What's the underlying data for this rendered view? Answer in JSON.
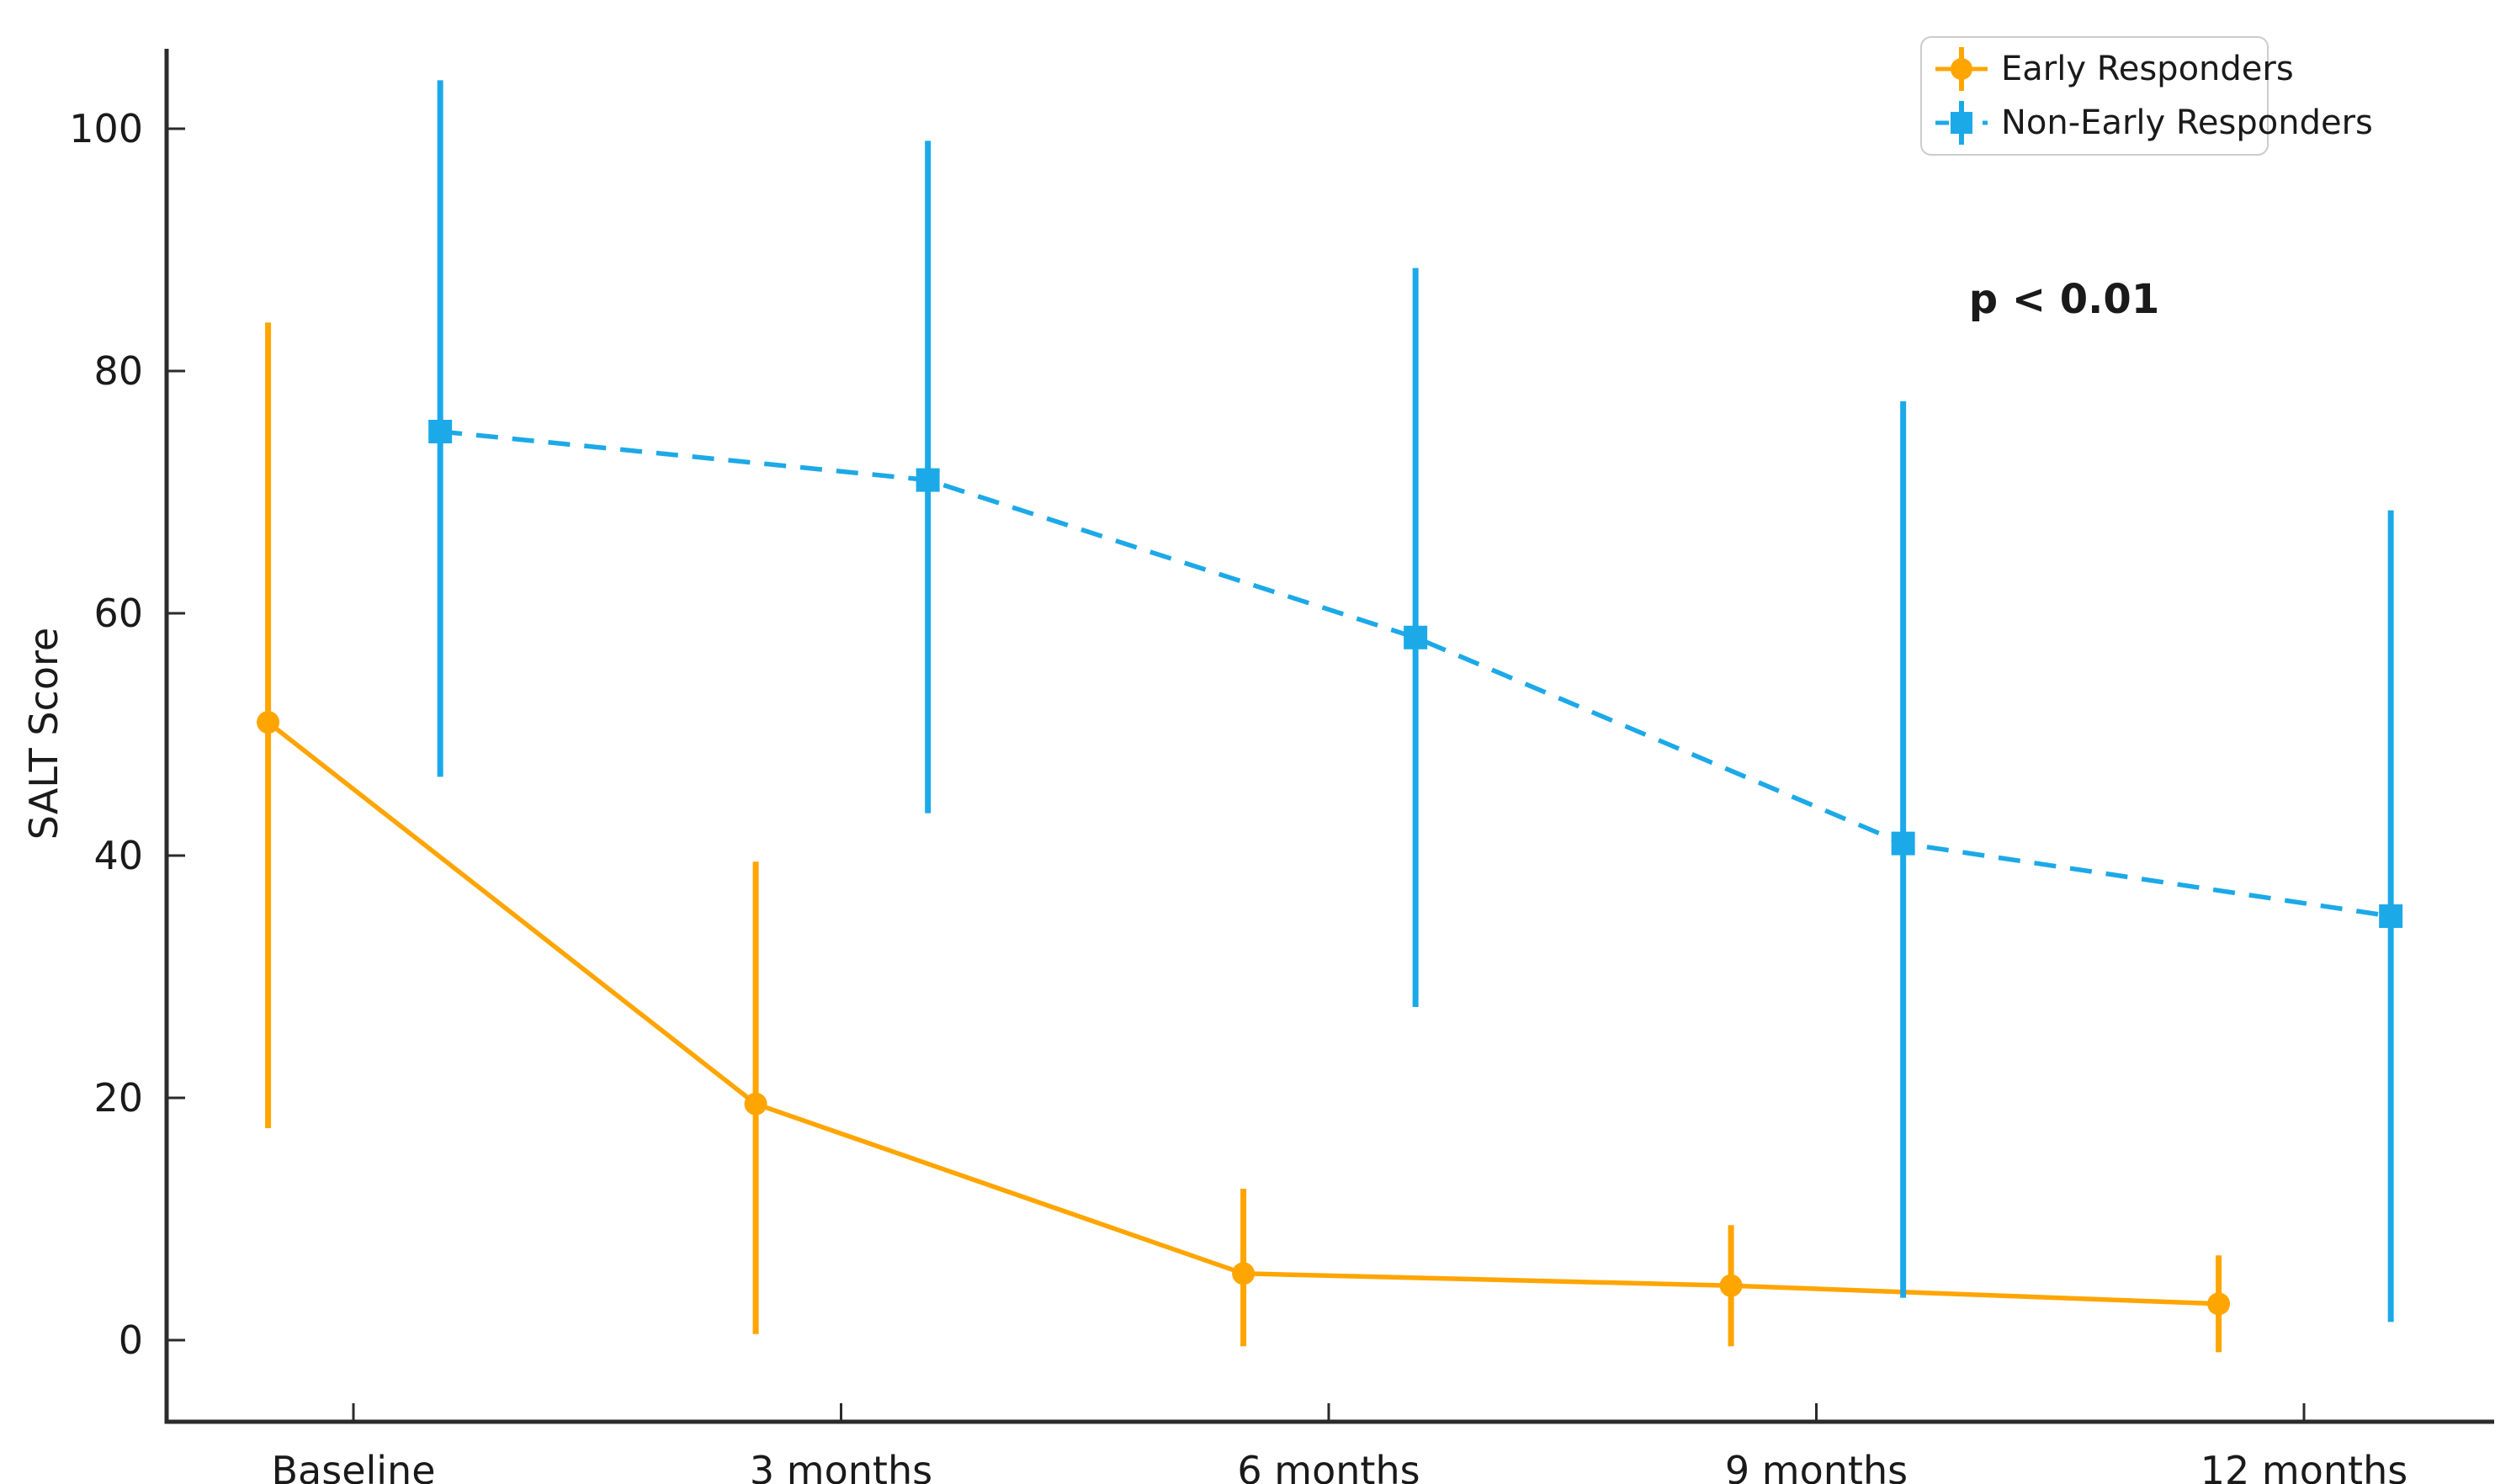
{
  "chart_data": {
    "type": "line",
    "title": "",
    "xlabel": "",
    "ylabel": "SALT Score",
    "categories": [
      "Baseline",
      "3 months",
      "6 months",
      "9 months",
      "12 months"
    ],
    "yticks": [
      0,
      20,
      40,
      60,
      80,
      100
    ],
    "ylim": [
      -7,
      107
    ],
    "grid": false,
    "legend_position": "upper right",
    "annotation": {
      "text": "p < 0.01"
    },
    "series": [
      {
        "name": "Early Responders",
        "color": "#FFA500",
        "line_style": "solid",
        "marker": "circle",
        "x_offset": -0.175,
        "values": [
          51,
          19.5,
          5.5,
          4.5,
          3
        ],
        "err_low": [
          17.5,
          0.5,
          -0.5,
          -0.5,
          -1
        ],
        "err_high": [
          84,
          39.5,
          12.5,
          9.5,
          7
        ]
      },
      {
        "name": "Non-Early Responders",
        "color": "#1CA9E8",
        "line_style": "dashed",
        "marker": "square",
        "x_offset": 0.178,
        "values": [
          75,
          71,
          58,
          41,
          35
        ],
        "err_low": [
          46.5,
          43.5,
          27.5,
          3.5,
          1.5
        ],
        "err_high": [
          104,
          99,
          88.5,
          77.5,
          68.5
        ]
      }
    ],
    "axis_color": "#2b2b2b",
    "text_color": "#1a1a1a"
  }
}
